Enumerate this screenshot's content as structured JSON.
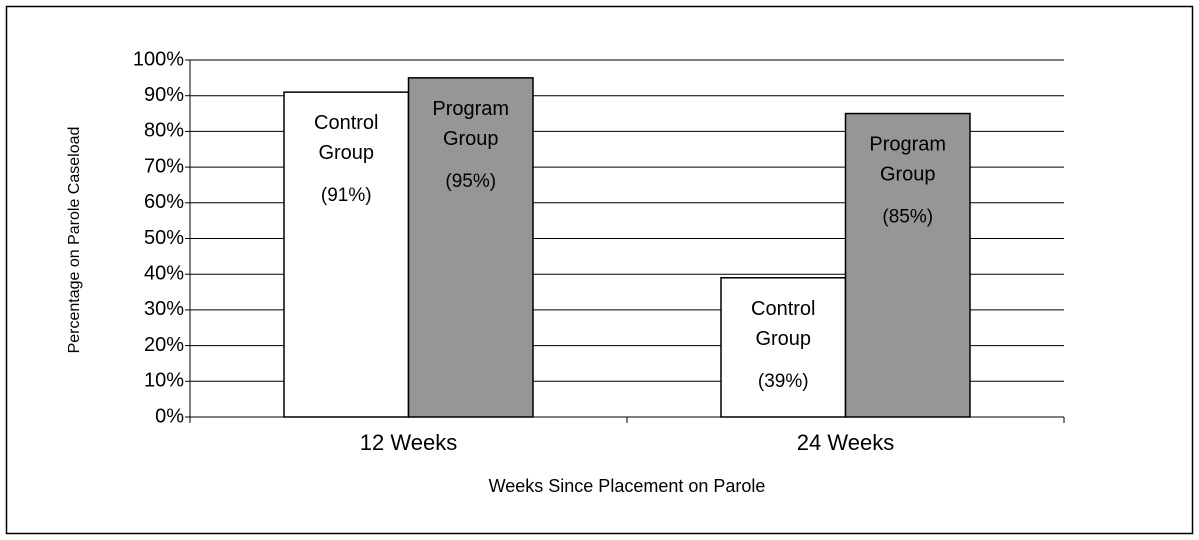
{
  "chart_data": {
    "type": "bar",
    "ylabel": "Percentage on Parole Caseload",
    "xlabel": "Weeks Since Placement on Parole",
    "categories": [
      "12 Weeks",
      "24 Weeks"
    ],
    "series": [
      {
        "name": "Control Group",
        "color": "#ffffff",
        "values": [
          91,
          39
        ],
        "value_labels": [
          "(91%)",
          "(39%)"
        ]
      },
      {
        "name": "Program Group",
        "color": "#969696",
        "values": [
          95,
          85
        ],
        "value_labels": [
          "(95%)",
          "(85%)"
        ]
      }
    ],
    "ylim": [
      0,
      100
    ],
    "yticks": [
      {
        "value": 0,
        "label": "0%"
      },
      {
        "value": 10,
        "label": "10%"
      },
      {
        "value": 20,
        "label": "20%"
      },
      {
        "value": 30,
        "label": "30%"
      },
      {
        "value": 40,
        "label": "40%"
      },
      {
        "value": 50,
        "label": "50%"
      },
      {
        "value": 60,
        "label": "60%"
      },
      {
        "value": 70,
        "label": "70%"
      },
      {
        "value": 80,
        "label": "80%"
      },
      {
        "value": 90,
        "label": "90%"
      },
      {
        "value": 100,
        "label": "100%"
      }
    ],
    "grid": true
  }
}
